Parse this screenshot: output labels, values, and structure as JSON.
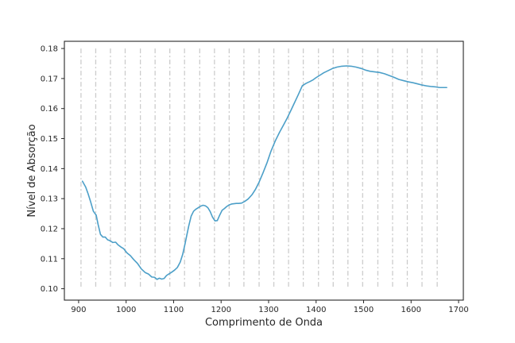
{
  "chart_data": {
    "type": "line",
    "title": "",
    "xlabel": "Comprimento de Onda",
    "ylabel": "Nível de Absorção",
    "xlim": [
      870,
      1710
    ],
    "ylim": [
      0.0962,
      0.1824
    ],
    "xticks": [
      900,
      1000,
      1100,
      1200,
      1300,
      1400,
      1500,
      1600,
      1700
    ],
    "yticks": [
      0.1,
      0.11,
      0.12,
      0.13,
      0.14,
      0.15,
      0.16,
      0.17,
      0.18
    ],
    "grid": false,
    "legend": "none",
    "series": [
      {
        "color": "#4c9fc8",
        "x": [
          908,
          915,
          920,
          925,
          931,
          937,
          941,
          946,
          951,
          956,
          961,
          966,
          972,
          978,
          983,
          989,
          995,
          1002,
          1009,
          1016,
          1024,
          1032,
          1040,
          1047,
          1054,
          1060,
          1065,
          1070,
          1075,
          1080,
          1085,
          1090,
          1096,
          1102,
          1108,
          1114,
          1119,
          1124,
          1128,
          1132,
          1137,
          1142,
          1147,
          1152,
          1157,
          1162,
          1167,
          1172,
          1177,
          1182,
          1187,
          1192,
          1197,
          1202,
          1207,
          1212,
          1217,
          1222,
          1227,
          1232,
          1237,
          1243,
          1250,
          1257,
          1265,
          1272,
          1280,
          1288,
          1297,
          1305,
          1314,
          1323,
          1331,
          1339,
          1347,
          1355,
          1363,
          1371,
          1379,
          1387,
          1394,
          1400,
          1408,
          1416,
          1425,
          1434,
          1444,
          1454,
          1464,
          1474,
          1484,
          1494,
          1504,
          1514,
          1524,
          1534,
          1544,
          1554,
          1564,
          1574,
          1584,
          1594,
          1604,
          1614,
          1624,
          1634,
          1644,
          1652,
          1660,
          1668,
          1675
        ],
        "values": [
          0.1358,
          0.1338,
          0.1316,
          0.1291,
          0.1258,
          0.1245,
          0.1214,
          0.1181,
          0.1172,
          0.1172,
          0.1163,
          0.116,
          0.1154,
          0.1155,
          0.1146,
          0.1139,
          0.1133,
          0.1119,
          0.111,
          0.1097,
          0.1084,
          0.1066,
          0.1054,
          0.1049,
          0.1039,
          0.1038,
          0.1031,
          0.1035,
          0.1032,
          0.1034,
          0.1044,
          0.1049,
          0.1055,
          0.1062,
          0.1071,
          0.1089,
          0.1114,
          0.1149,
          0.118,
          0.121,
          0.1242,
          0.1258,
          0.1265,
          0.127,
          0.1275,
          0.1278,
          0.1276,
          0.127,
          0.1257,
          0.1238,
          0.1226,
          0.1227,
          0.1245,
          0.1261,
          0.1267,
          0.1274,
          0.1279,
          0.1282,
          0.1283,
          0.1284,
          0.1284,
          0.1285,
          0.1291,
          0.1299,
          0.1313,
          0.133,
          0.1355,
          0.1385,
          0.1421,
          0.1458,
          0.1492,
          0.1521,
          0.1544,
          0.1568,
          0.1594,
          0.1621,
          0.1648,
          0.1676,
          0.1684,
          0.169,
          0.1696,
          0.1703,
          0.1711,
          0.1719,
          0.1726,
          0.1733,
          0.1738,
          0.1741,
          0.1742,
          0.1741,
          0.1738,
          0.1734,
          0.1728,
          0.1724,
          0.1722,
          0.172,
          0.1716,
          0.171,
          0.1704,
          0.1697,
          0.1693,
          0.1689,
          0.1686,
          0.1682,
          0.1678,
          0.1675,
          0.1673,
          0.1672,
          0.167,
          0.167,
          0.167
        ]
      }
    ],
    "reference_lines": {
      "style": "dashed",
      "color": "#cccccc",
      "x": [
        905,
        936,
        967,
        998,
        1030,
        1061,
        1092,
        1123,
        1155,
        1186,
        1217,
        1248,
        1280,
        1311,
        1342,
        1373,
        1405,
        1436,
        1467,
        1498,
        1530,
        1561,
        1592,
        1623,
        1655
      ],
      "y_range": [
        0.1,
        0.18
      ]
    }
  }
}
